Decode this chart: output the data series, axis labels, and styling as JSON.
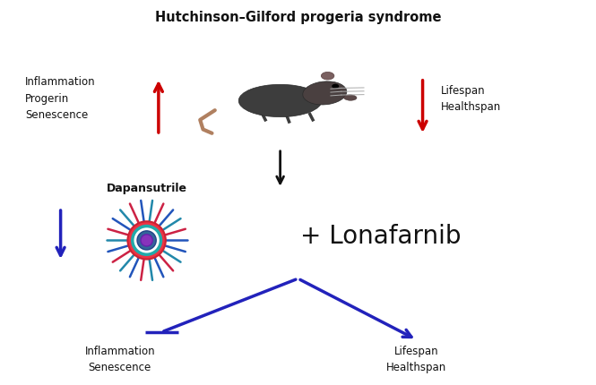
{
  "title": "Hutchinson–Gilford progeria syndrome",
  "title_fontsize": 10.5,
  "title_fontweight": "bold",
  "bg_color": "#ffffff",
  "top_left_label": "Inflammation\nProgerin\nSenescence",
  "top_right_label": "Lifespan\nHealthspan",
  "dapansutrile_label": "Dapansutrile",
  "lonafarnib_label": "+ Lonafarnib",
  "bottom_left_label": "Inflammation\nSenescence",
  "bottom_right_label": "Lifespan\nHealthspan",
  "red_color": "#cc0000",
  "blue_color": "#2222bb",
  "dark_color": "#111111",
  "mouse_body_color": "#3d3d3d",
  "mouse_head_color": "#4a4040",
  "mouse_ear_color": "#7a6060",
  "mouse_tail_color": "#b08060",
  "inflammasome_spike_colors": [
    "#2255bb",
    "#cc2244",
    "#2288aa"
  ],
  "inflammasome_ring1_face": "#ee3344",
  "inflammasome_ring1_edge": "#cc2233",
  "inflammasome_ring2_face": "#ffffff",
  "inflammasome_ring2_edge": "#22aaaa",
  "inflammasome_ring3_face": "#336699",
  "inflammasome_ring3_edge": "#224488",
  "inflammasome_center_face": "#8833bb",
  "inflammasome_center_edge": "#6622aa"
}
